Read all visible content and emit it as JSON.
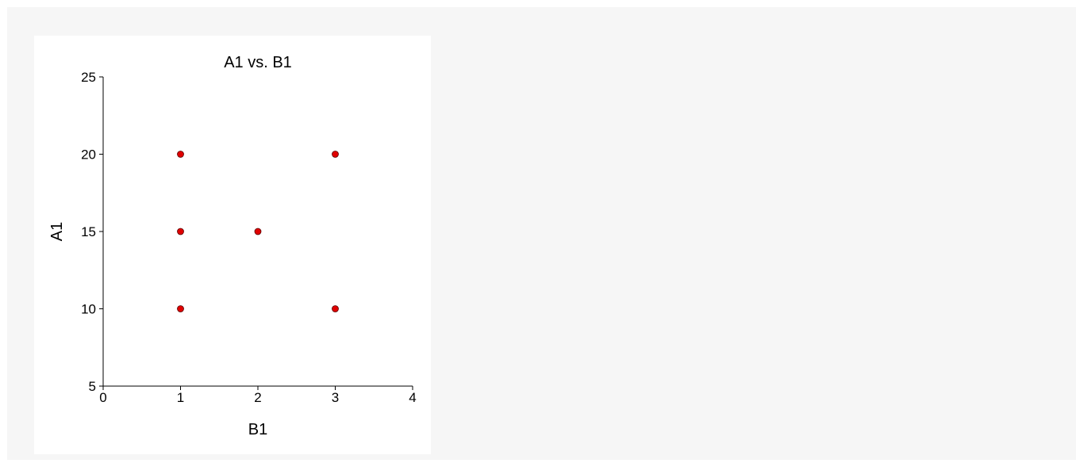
{
  "chart_data": {
    "type": "scatter",
    "title": "A1 vs. B1",
    "xlabel": "B1",
    "ylabel": "A1",
    "xlim": [
      0,
      4
    ],
    "ylim": [
      5,
      25
    ],
    "xticks": [
      0,
      1,
      2,
      3,
      4
    ],
    "yticks": [
      5,
      10,
      15,
      20,
      25
    ],
    "grid": false,
    "points": [
      {
        "x": 1,
        "y": 20
      },
      {
        "x": 3,
        "y": 20
      },
      {
        "x": 1,
        "y": 15
      },
      {
        "x": 2,
        "y": 15
      },
      {
        "x": 1,
        "y": 10
      },
      {
        "x": 3,
        "y": 10
      }
    ],
    "marker_color": "#e00000",
    "background_color": "#f6f6f6"
  }
}
